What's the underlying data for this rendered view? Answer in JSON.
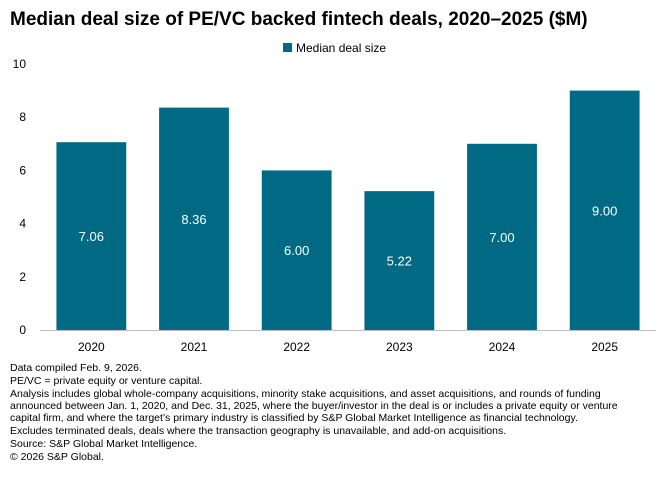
{
  "title": "Median deal size of PE/VC backed fintech deals, 2020–2025 ($M)",
  "chart_data": {
    "type": "bar",
    "categories": [
      "2020",
      "2021",
      "2022",
      "2023",
      "2024",
      "2025"
    ],
    "series": [
      {
        "name": "Median deal size",
        "values": [
          7.06,
          8.36,
          6.0,
          5.22,
          7.0,
          9.0
        ],
        "labels": [
          "7.06",
          "8.36",
          "6.00",
          "5.22",
          "7.00",
          "9.00"
        ]
      }
    ],
    "ylim": [
      0,
      10
    ],
    "yticks": [
      0,
      2,
      4,
      6,
      8,
      10
    ],
    "legend": "top-center",
    "grid": false,
    "bar_color": "#006a84"
  },
  "footnotes": [
    "Data compiled Feb. 9, 2026.",
    "PE/VC = private equity or venture capital.",
    "Analysis includes global whole-company acquisitions, minority stake acquisitions, and asset acquisitions, and rounds of funding announced between Jan. 1, 2020, and Dec. 31, 2025, where the buyer/investor in the deal is or includes a private equity or venture capital firm, and where the target’s primary industry is classified by S&P Global Market Intelligence as financial technology.",
    "Excludes terminated deals,  deals where the transaction geography is unavailable, and add-on acquisitions.",
    "Source: S&P Global Market Intelligence.",
    "© 2026 S&P Global."
  ]
}
